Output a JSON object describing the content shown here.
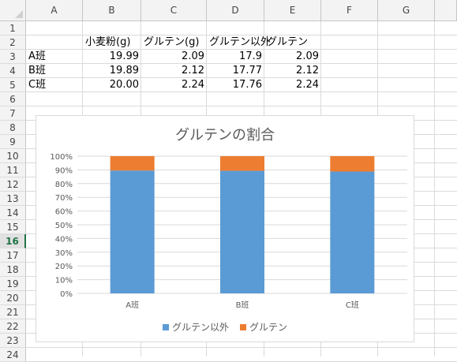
{
  "sheet": {
    "columns": [
      "A",
      "B",
      "C",
      "D",
      "E",
      "F",
      "G"
    ],
    "rows": [
      "1",
      "2",
      "3",
      "4",
      "5",
      "6",
      "7",
      "8",
      "9",
      "10",
      "11",
      "12",
      "13",
      "14",
      "15",
      "16",
      "17",
      "18",
      "19",
      "20",
      "21",
      "22",
      "23",
      "24"
    ],
    "active_row": "16",
    "header_row": [
      "",
      "小麦粉(g)",
      "グルテン(g)",
      "グルテン以外",
      "グルテン"
    ],
    "data_rows": [
      [
        "A班",
        "19.99",
        "2.09",
        "17.9",
        "2.09"
      ],
      [
        "B班",
        "19.89",
        "2.12",
        "17.77",
        "2.12"
      ],
      [
        "C班",
        "20.00",
        "2.24",
        "17.76",
        "2.24"
      ]
    ]
  },
  "colors": {
    "series1": "#5b9bd5",
    "series2": "#ed7d31",
    "grid": "#d9d9d9",
    "text": "#595959"
  },
  "chart_data": {
    "type": "bar",
    "stacked": "percent",
    "title": "グルテンの割合",
    "categories": [
      "A班",
      "B班",
      "C班"
    ],
    "series": [
      {
        "name": "グルテン以外",
        "values": [
          17.9,
          17.77,
          17.76
        ]
      },
      {
        "name": "グルテン",
        "values": [
          2.09,
          2.12,
          2.24
        ]
      }
    ],
    "y_ticks": [
      "0%",
      "10%",
      "20%",
      "30%",
      "40%",
      "50%",
      "60%",
      "70%",
      "80%",
      "90%",
      "100%"
    ],
    "ylim": [
      0,
      100
    ],
    "grid": true,
    "legend": "bottom"
  }
}
